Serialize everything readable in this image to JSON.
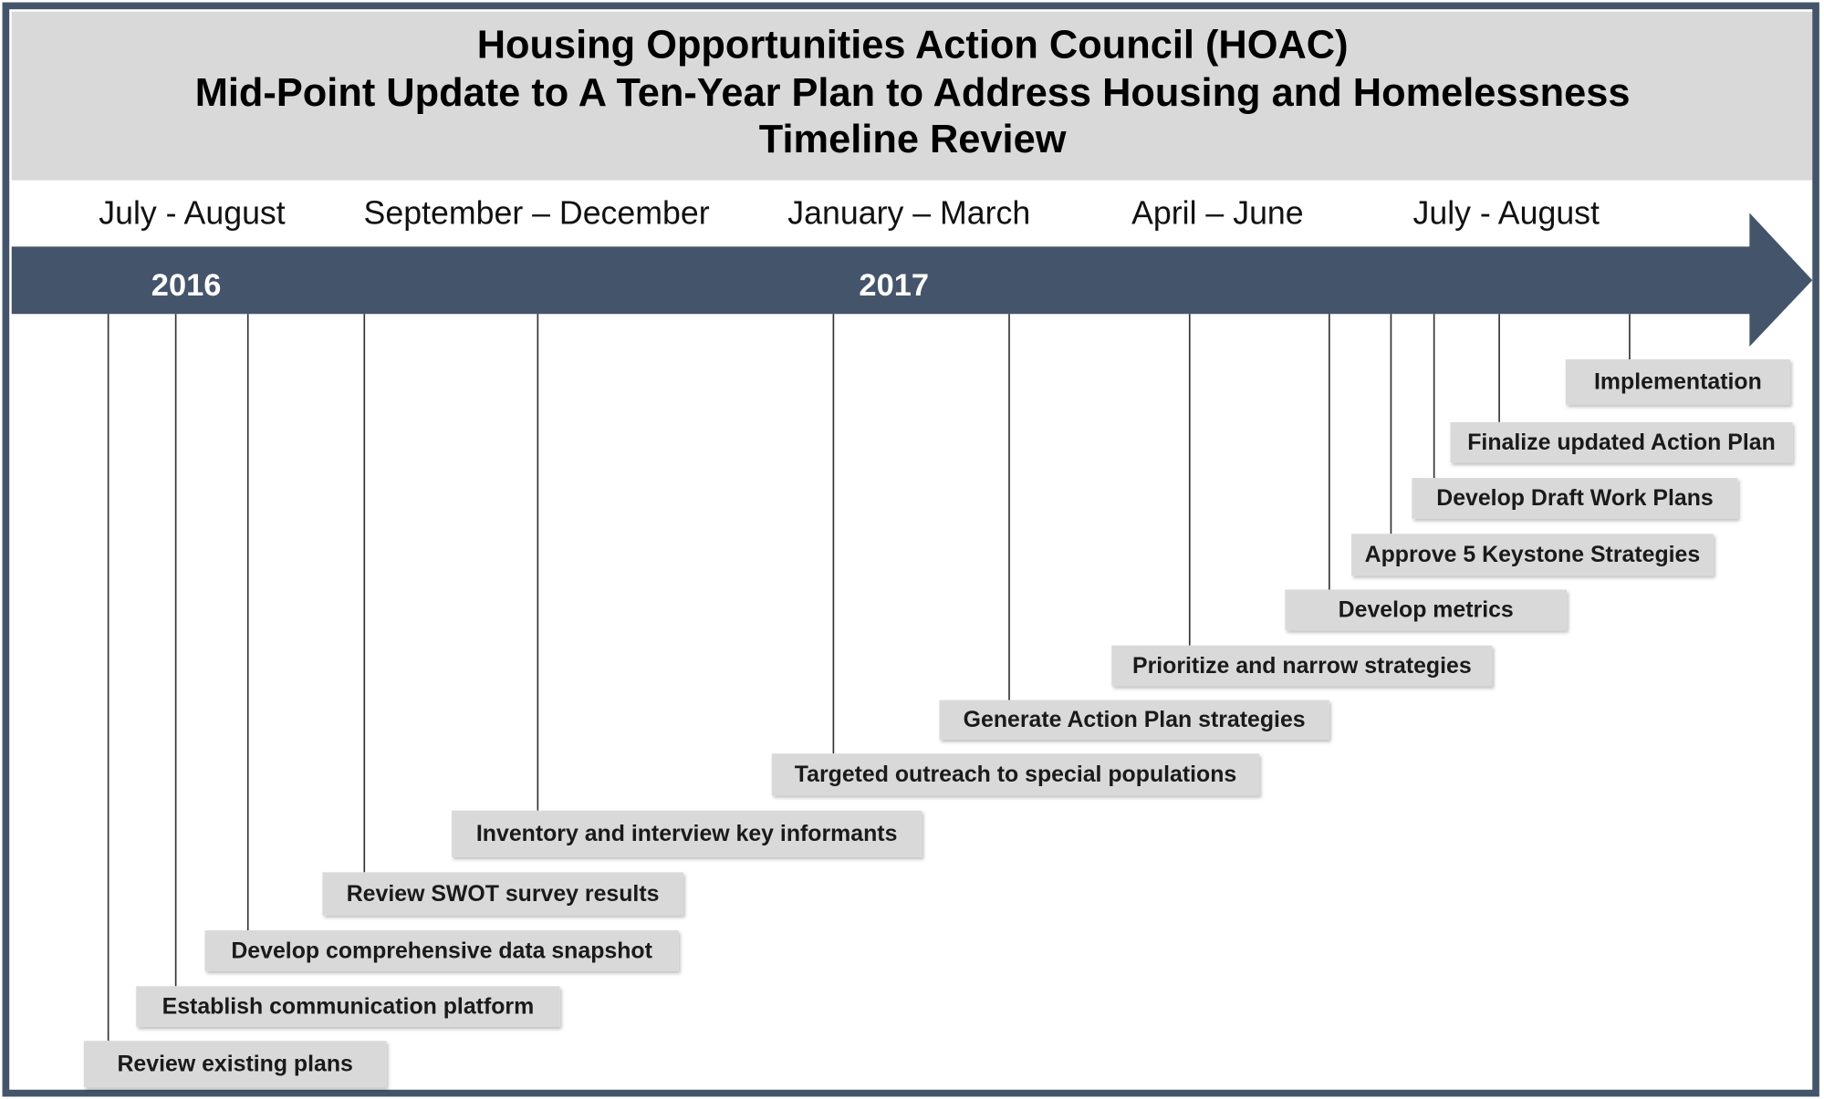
{
  "header": {
    "title": [
      "Housing Opportunities Action Council (HOAC)",
      "Mid-Point Update to A Ten-Year Plan to Address  Housing and Homelessness",
      "Timeline Review"
    ]
  },
  "periods": [
    "July - August",
    "September – December",
    "January – March",
    "April – June",
    "July - August"
  ],
  "years": [
    "2016",
    "2017"
  ],
  "milestones": [
    "Review existing plans",
    "Establish communication platform",
    "Develop comprehensive data snapshot",
    "Review SWOT survey results",
    "Inventory and interview key informants",
    "Targeted outreach to special populations",
    "Generate Action Plan strategies",
    "Prioritize and narrow strategies",
    "Develop metrics",
    "Approve 5 Keystone Strategies",
    "Develop Draft Work Plans",
    "Finalize updated Action Plan",
    "Implementation"
  ]
}
